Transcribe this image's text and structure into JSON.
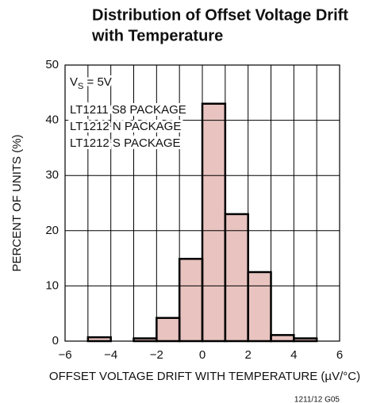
{
  "chart_data": {
    "type": "histogram",
    "title_lines": [
      "Distribution of Offset Voltage Drift",
      "with Temperature"
    ],
    "xlabel": "OFFSET VOLTAGE DRIFT WITH TEMPERATURE (µV/°C)",
    "ylabel": "PERCENT OF UNITS (%)",
    "supply_label": {
      "symbol": "V",
      "subscript": "S",
      "text": " = 5V"
    },
    "annotations": [
      "LT1211 S8 PACKAGE",
      "LT1212 N PACKAGE",
      "LT1212 S PACKAGE"
    ],
    "footnote": "1211/12 G05",
    "bins": [
      -5,
      -4,
      -3,
      -2,
      -1,
      0,
      1,
      2,
      3,
      4,
      5
    ],
    "values": [
      0.7,
      0,
      0.5,
      4.2,
      14.9,
      43,
      23,
      12.5,
      1.1,
      0.5
    ],
    "color": "#e8c3bf",
    "xlim": [
      -6,
      6
    ],
    "xticks": [
      {
        "value": -6,
        "label": "−6"
      },
      {
        "value": -4,
        "label": "−4"
      },
      {
        "value": -2,
        "label": "−2"
      },
      0,
      2,
      4,
      6
    ],
    "minor_xticks": [
      -5,
      -3,
      -1,
      1,
      3,
      5
    ],
    "ylim": [
      0,
      50
    ],
    "yticks": [
      0,
      10,
      20,
      30,
      40,
      50
    ],
    "grid": true
  }
}
